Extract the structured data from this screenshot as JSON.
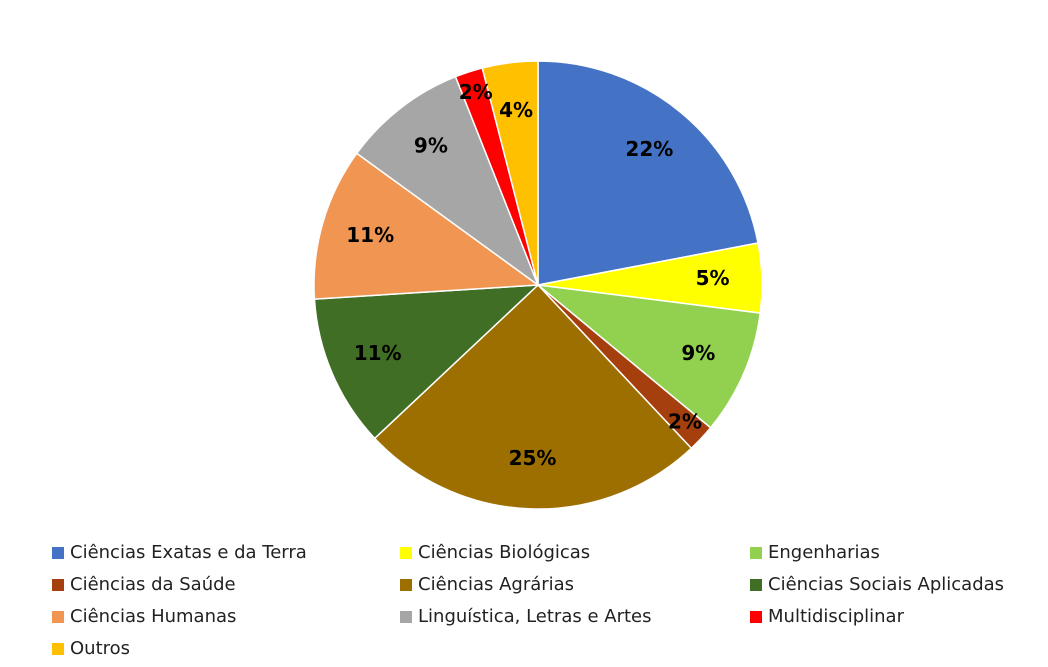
{
  "chart_data": {
    "type": "pie",
    "categories": [
      "Ciências Exatas e da Terra",
      "Ciências Biológicas",
      "Engenharias",
      "Ciências da Saúde",
      "Ciências Agrárias",
      "Ciências Sociais Aplicadas",
      "Ciências Humanas",
      "Linguística, Letras e Artes",
      "Multidisciplinar",
      "Outros"
    ],
    "values": [
      22,
      5,
      9,
      2,
      25,
      11,
      11,
      9,
      2,
      4
    ],
    "value_labels": [
      "22%",
      "5%",
      "9%",
      "2%",
      "25%",
      "11%",
      "11%",
      "9%",
      "2%",
      "4%"
    ],
    "colors": [
      "#4472c4",
      "#ffff00",
      "#92d050",
      "#a5400e",
      "#9c6f00",
      "#3f6e24",
      "#f19552",
      "#a6a6a6",
      "#ff0000",
      "#ffc000"
    ],
    "legend": "bottom"
  }
}
